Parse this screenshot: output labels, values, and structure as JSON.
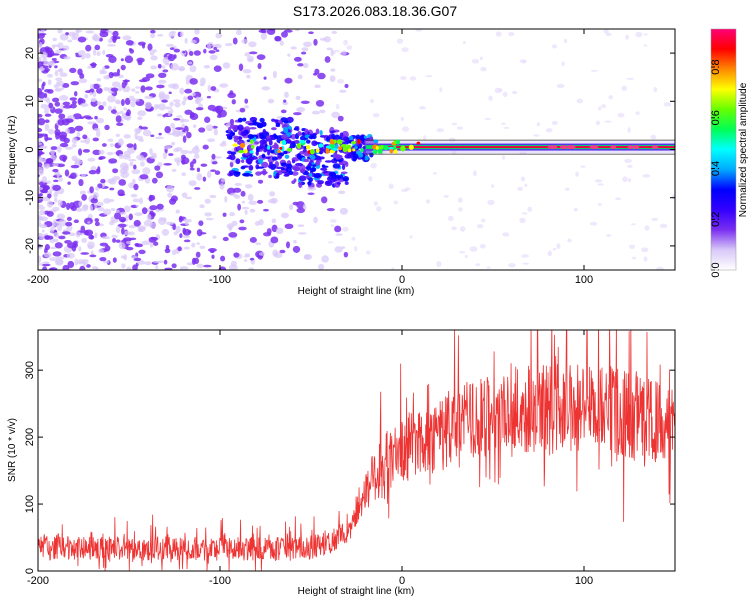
{
  "title": "S173.2026.083.18.36.G07",
  "chart_data": [
    {
      "type": "heatmap",
      "xlabel": "Height of straight line (km)",
      "ylabel": "Frequency (Hz)",
      "xlim": [
        -200,
        150
      ],
      "ylim": [
        -25,
        25
      ],
      "xticks": [
        -200,
        -100,
        0,
        100
      ],
      "xtick_labels": [
        "-200",
        "-100",
        "0",
        "100"
      ],
      "yticks": [
        -20,
        -10,
        0,
        10,
        20
      ],
      "ytick_labels": [
        "-20",
        "-10",
        "0",
        "10",
        "20"
      ],
      "tone": {
        "x_start": -95,
        "x_end": 150,
        "center_hz": 0.5,
        "note": "strong narrowband signal near 0-1 Hz, noisy spread below -40 km"
      },
      "colorbar": {
        "label": "Normalized spectral amplitude",
        "range": [
          0.0,
          0.95
        ],
        "ticks": [
          0.0,
          0.2,
          0.4,
          0.6,
          0.8
        ],
        "tick_labels": [
          "0.0",
          "0.2",
          "0.4",
          "0.6",
          "0.8"
        ],
        "colors": [
          "#ffffff",
          "#d8c8f8",
          "#7a2ff0",
          "#3300ff",
          "#0000ff",
          "#00aaff",
          "#00ffff",
          "#00ff55",
          "#66ff00",
          "#ffff00",
          "#ff8800",
          "#ff0000",
          "#ff0077"
        ]
      }
    },
    {
      "type": "line",
      "xlabel": "Height of straight line (km)",
      "ylabel": "SNR (10 * v/v)",
      "xlim": [
        -200,
        150
      ],
      "ylim": [
        0,
        360
      ],
      "xticks": [
        -200,
        -100,
        0,
        100
      ],
      "xtick_labels": [
        "-200",
        "-100",
        "0",
        "100"
      ],
      "yticks": [
        0,
        100,
        200,
        300
      ],
      "ytick_labels": [
        "0",
        "100",
        "200",
        "300"
      ],
      "color": "#ee3333",
      "series": [
        {
          "name": "SNR",
          "x": [
            -200,
            -180,
            -160,
            -140,
            -120,
            -100,
            -80,
            -60,
            -50,
            -40,
            -30,
            -25,
            -20,
            -15,
            -10,
            -5,
            0,
            10,
            20,
            30,
            40,
            50,
            60,
            70,
            80,
            90,
            100,
            110,
            120,
            130,
            140,
            150
          ],
          "values": [
            35,
            33,
            33,
            34,
            33,
            33,
            33,
            33,
            35,
            42,
            60,
            90,
            120,
            145,
            160,
            170,
            180,
            195,
            205,
            215,
            225,
            230,
            235,
            240,
            242,
            244,
            245,
            243,
            238,
            230,
            222,
            215
          ]
        }
      ]
    }
  ]
}
